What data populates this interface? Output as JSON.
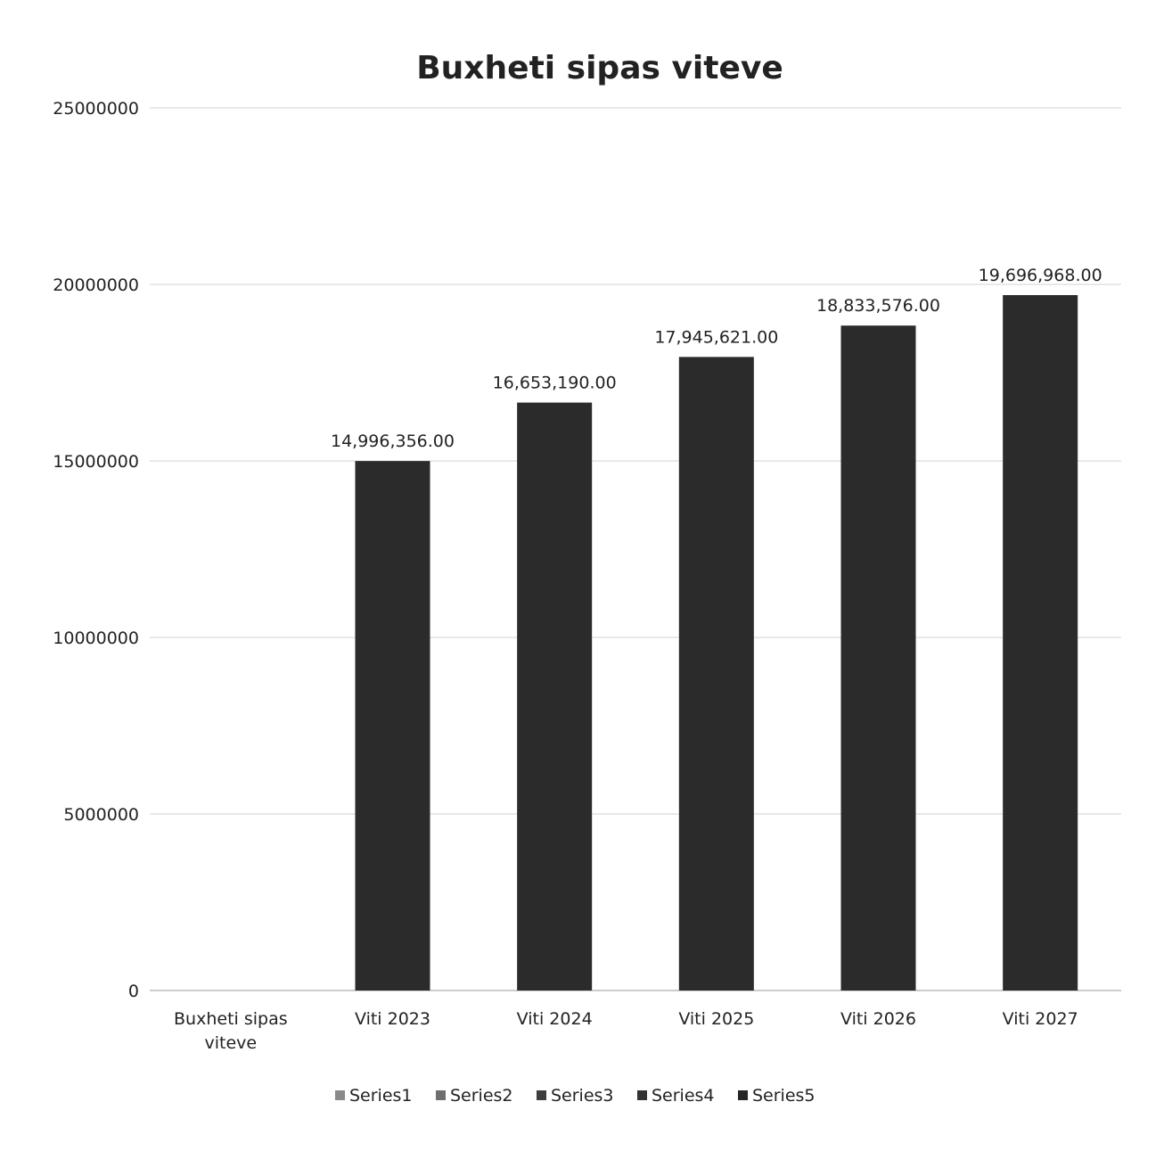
{
  "chart_data": {
    "type": "bar",
    "title": "Buxheti sipas viteve",
    "xlabel": "",
    "ylabel": "",
    "categories": [
      "Buxheti sipas viteve",
      "Viti 2023",
      "Viti 2024",
      "Viti 2025",
      "Viti 2026",
      "Viti 2027"
    ],
    "values": [
      null,
      14996356,
      16653190,
      17945621,
      18833576,
      19696968
    ],
    "data_labels": [
      "",
      "14,996,356.00",
      "16,653,190.00",
      "17,945,621.00",
      "18,833,576.00",
      "19,696,968.00"
    ],
    "ylim": [
      0,
      25000000
    ],
    "yticks": [
      "0",
      "5000000",
      "10000000",
      "15000000",
      "20000000",
      "25000000"
    ],
    "grid": true,
    "legend": {
      "position": "bottom",
      "entries": [
        "Series1",
        "Series2",
        "Series3",
        "Series4",
        "Series5"
      ]
    },
    "colors": {
      "bars": "#2b2b2b",
      "gridline": "#d0d0d0",
      "legend_swatches": [
        "#8a8a8a",
        "#6e6e6e",
        "#3e3e3e",
        "#333333",
        "#262626"
      ]
    }
  }
}
